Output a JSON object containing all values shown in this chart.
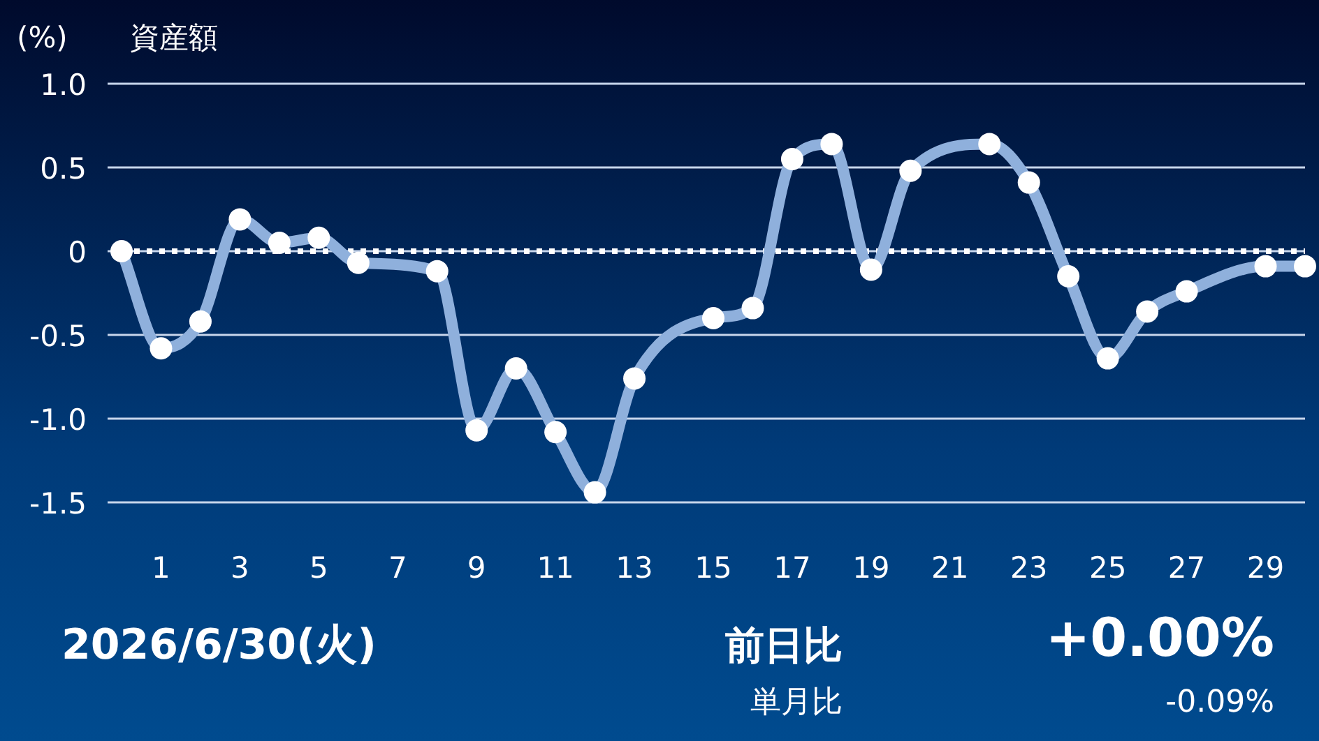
{
  "chart_data": {
    "type": "line",
    "title": "資産額",
    "ylabel": "(%)",
    "x": [
      0,
      1,
      2,
      3,
      4,
      5,
      6,
      8,
      9,
      10,
      11,
      12,
      13,
      15,
      16,
      17,
      18,
      19,
      20,
      22,
      23,
      24,
      25,
      26,
      27,
      29,
      30
    ],
    "series": [
      {
        "color": "#8fb0dc",
        "values": [
          0,
          -0.58,
          -0.42,
          0.19,
          0.05,
          0.08,
          -0.07,
          -0.12,
          -1.07,
          -0.7,
          -1.08,
          -1.44,
          -0.76,
          -0.4,
          -0.34,
          0.55,
          0.64,
          -0.11,
          0.48,
          0.64,
          0.41,
          -0.15,
          -0.64,
          -0.36,
          -0.24,
          -0.09,
          -0.09
        ]
      }
    ],
    "xlim": [
      0,
      30
    ],
    "xticks": [
      1,
      3,
      5,
      7,
      9,
      11,
      13,
      15,
      17,
      19,
      21,
      23,
      25,
      27,
      29
    ],
    "ylim": [
      -1.5,
      1.0
    ],
    "yticks": [
      {
        "value": 1,
        "label": "1.0"
      },
      {
        "value": 0.5,
        "label": "0.5"
      },
      0,
      {
        "value": -0.5,
        "label": "-0.5"
      },
      {
        "value": -1,
        "label": "-1.0"
      },
      {
        "value": -1.5,
        "label": "-1.5"
      }
    ],
    "grid": "y",
    "marker": "circle",
    "line_style": "solid",
    "ref_lines": [
      {
        "axis": "y",
        "value": 0,
        "color": "#ffffff",
        "line_style": "dotted"
      }
    ],
    "annotations": [
      "2026/6/30(火)",
      "前日比",
      "+0.00%",
      "単月比",
      "-0.09%"
    ]
  }
}
